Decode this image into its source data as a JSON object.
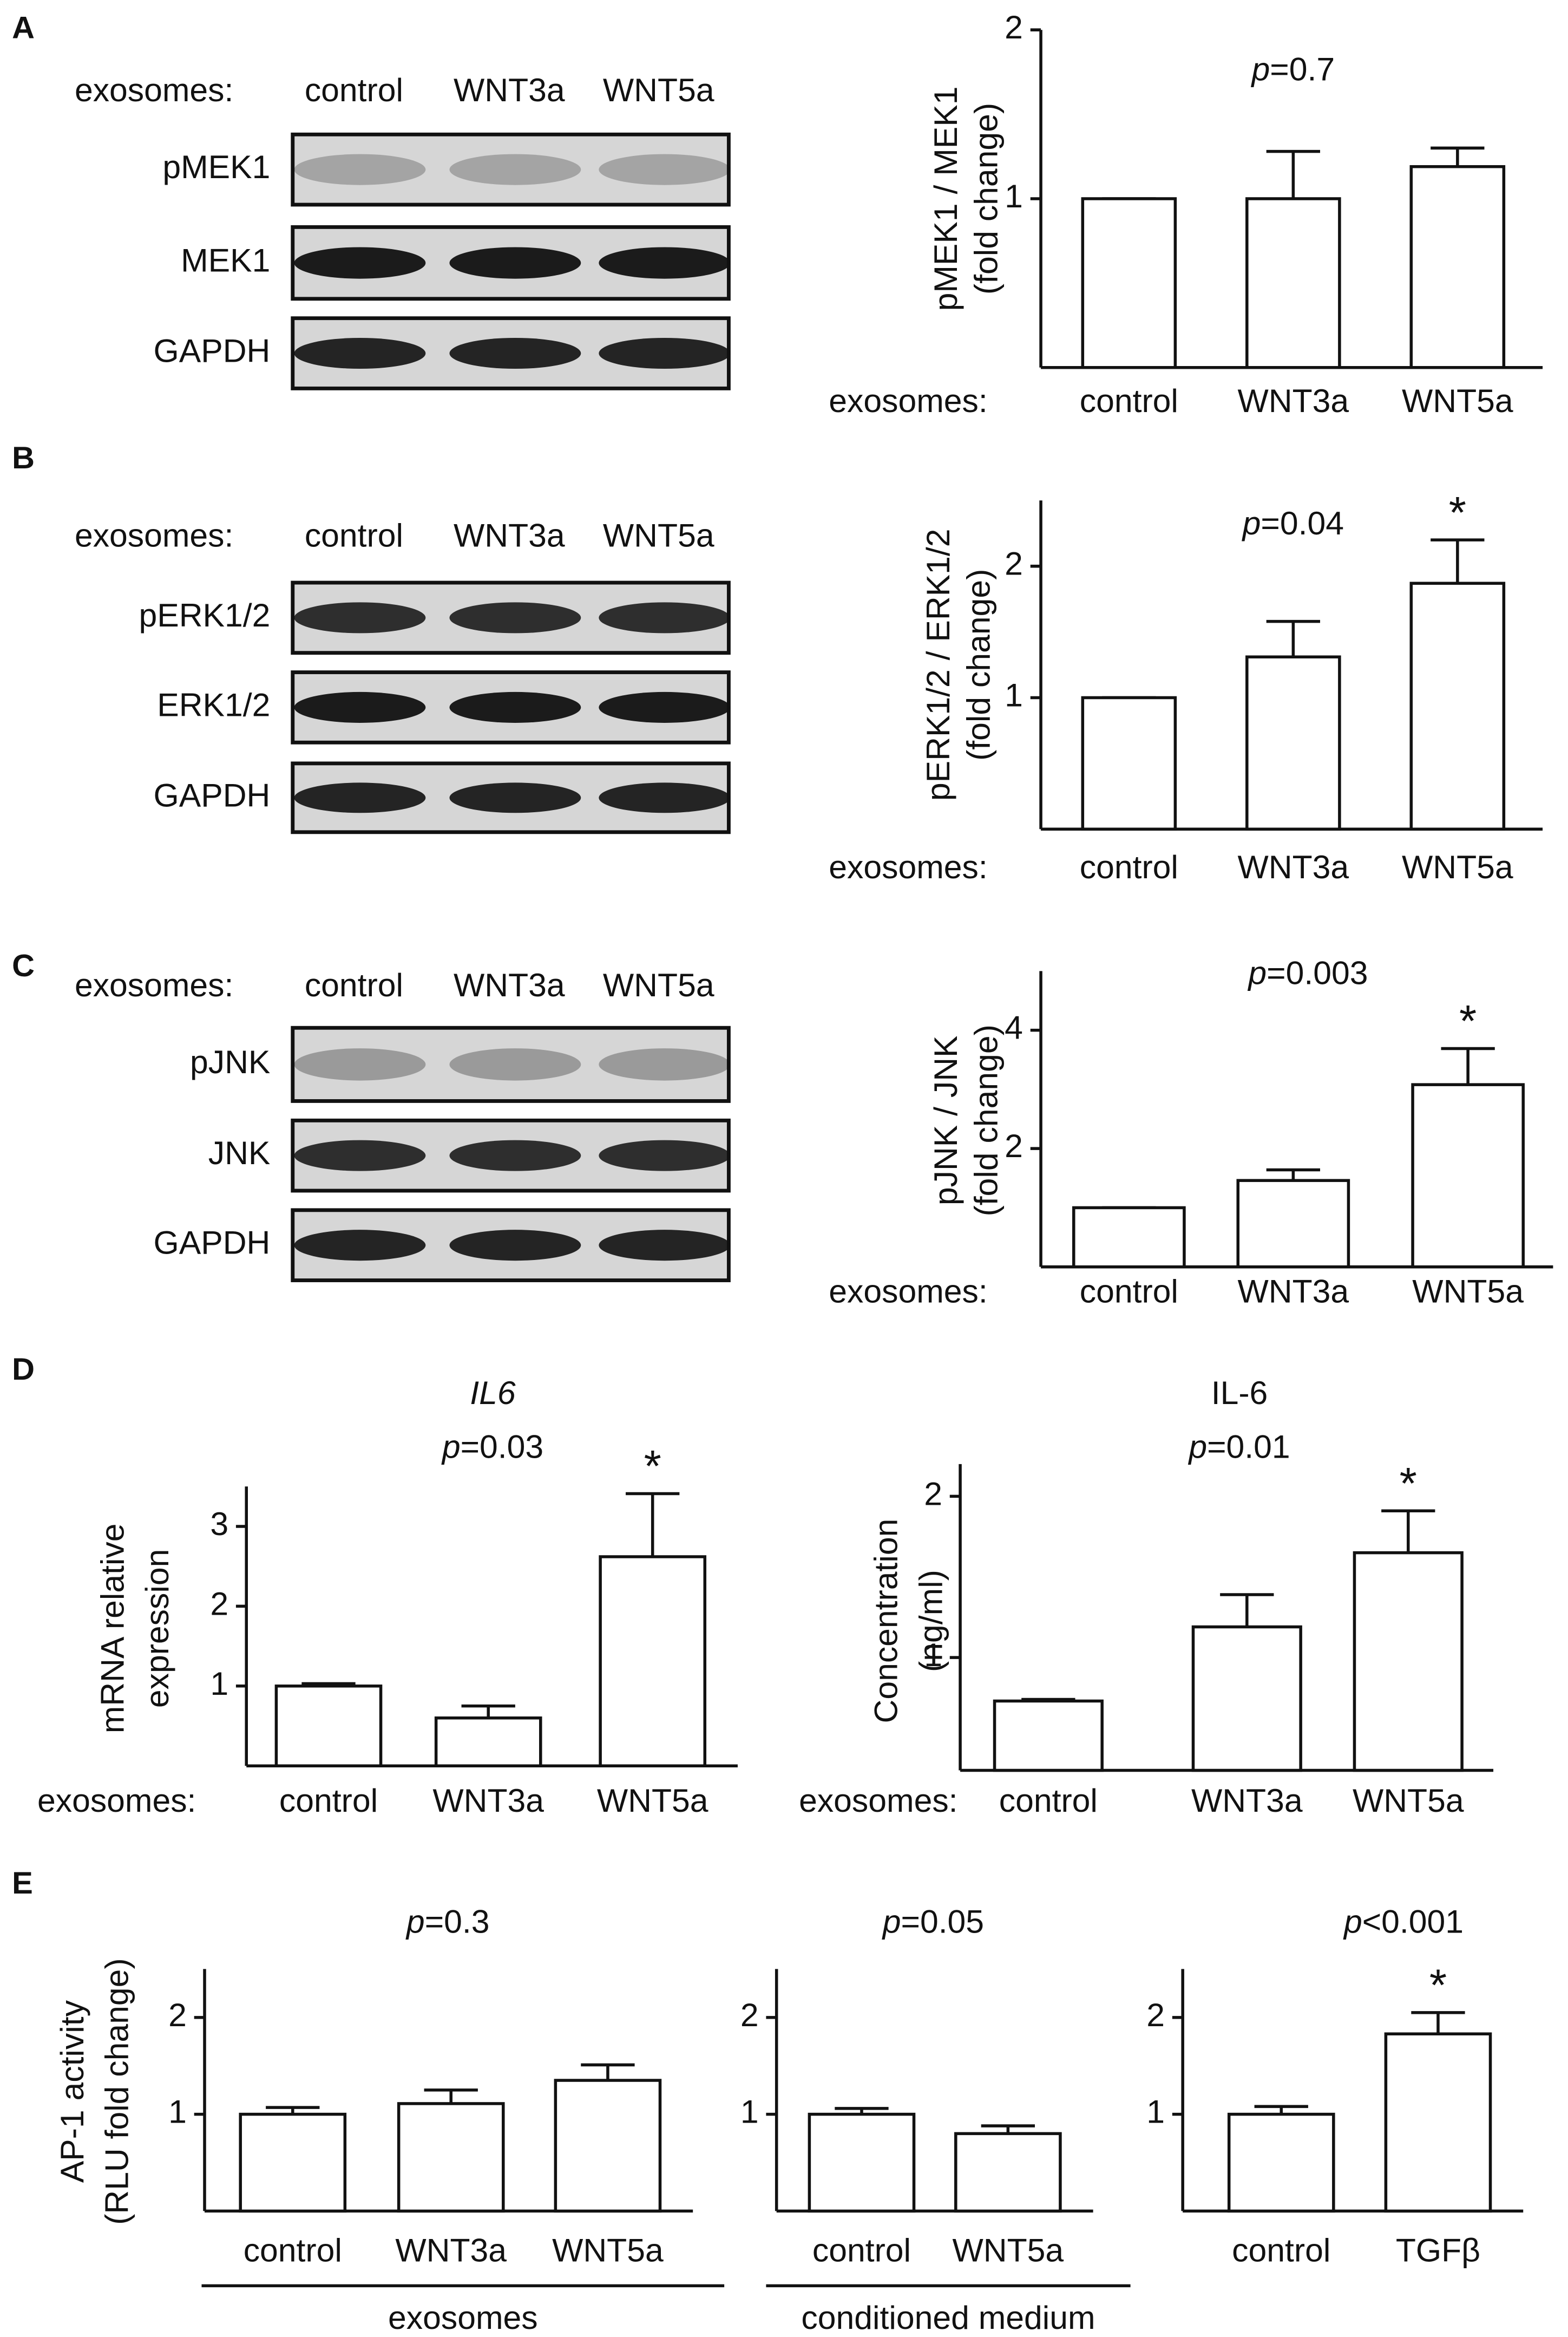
{
  "panel_labels": [
    "A",
    "B",
    "C",
    "D",
    "E"
  ],
  "blots": [
    {
      "header": "exosomes:",
      "lanes": [
        "control",
        "WNT3a",
        "WNT5a"
      ],
      "rows": [
        "pMEK1",
        "MEK1",
        "GAPDH"
      ]
    },
    {
      "header": "exosomes:",
      "lanes": [
        "control",
        "WNT3a",
        "WNT5a"
      ],
      "rows": [
        "pERK1/2",
        "ERK1/2",
        "GAPDH"
      ]
    },
    {
      "header": "exosomes:",
      "lanes": [
        "control",
        "WNT3a",
        "WNT5a"
      ],
      "rows": [
        "pJNK",
        "JNK",
        "GAPDH"
      ]
    }
  ],
  "chart_data": [
    {
      "type": "bar",
      "ylabel": [
        "pMEK1 / MEK1",
        "(fold change)"
      ],
      "xlabel": "exosomes:",
      "p_symbol": "p",
      "p_text": "=0.7",
      "categories": [
        "control",
        "WNT3a",
        "WNT5a"
      ],
      "values": [
        1,
        1.0,
        1.19
      ],
      "errors": [
        0,
        0.28,
        0.11
      ],
      "significance": [
        null,
        null,
        null
      ],
      "color": "#ffffff",
      "ylim": [
        0,
        2
      ],
      "yticks": [
        1,
        2
      ]
    },
    {
      "type": "bar",
      "ylabel": [
        "pERK1/2 / ERK1/2",
        "(fold change)"
      ],
      "xlabel": "exosomes:",
      "p_symbol": "p",
      "p_text": "=0.04",
      "categories": [
        "control",
        "WNT3a",
        "WNT5a"
      ],
      "values": [
        1,
        1.31,
        1.87
      ],
      "errors": [
        0,
        0.27,
        0.33
      ],
      "significance": [
        null,
        null,
        "*"
      ],
      "color": "#ffffff",
      "ylim": [
        0,
        2.5
      ],
      "yticks": [
        1,
        2
      ]
    },
    {
      "type": "bar",
      "ylabel": [
        "pJNK / JNK",
        "(fold change)"
      ],
      "xlabel": "exosomes:",
      "p_symbol": "p",
      "p_text": "=0.003",
      "categories": [
        "control",
        "WNT3a",
        "WNT5a"
      ],
      "values": [
        1,
        1.46,
        3.08
      ],
      "errors": [
        0,
        0.18,
        0.61
      ],
      "significance": [
        null,
        null,
        "*"
      ],
      "color": "#ffffff",
      "ylim": [
        0,
        5
      ],
      "yticks": [
        2,
        4
      ]
    },
    {
      "type": "bar",
      "title": "IL6",
      "ylabel": [
        "mRNA relative",
        "expression"
      ],
      "xlabel": "exosomes:",
      "p_symbol": "p",
      "p_text": "=0.03",
      "categories": [
        "control",
        "WNT3a",
        "WNT5a"
      ],
      "values": [
        1.0,
        0.6,
        2.62
      ],
      "errors": [
        0.03,
        0.15,
        0.79
      ],
      "significance": [
        null,
        null,
        "*"
      ],
      "color": "#ffffff",
      "ylim": [
        0,
        3.5
      ],
      "yticks": [
        1,
        2,
        3
      ]
    },
    {
      "type": "bar",
      "title": "IL-6",
      "ylabel": [
        "Concentration",
        "(ng/ml)"
      ],
      "xlabel": "exosomes:",
      "p_symbol": "p",
      "p_text": "=0.01",
      "categories": [
        "control",
        "WNT3a",
        "WNT5a"
      ],
      "values": [
        0.73,
        1.19,
        1.65
      ],
      "errors": [
        0.01,
        0.2,
        0.26
      ],
      "significance": [
        null,
        null,
        "*"
      ],
      "color": "#ffffff",
      "ylim": [
        0.3,
        2.2
      ],
      "yticks": [
        1,
        2
      ]
    },
    {
      "type": "bar",
      "ylabel": [
        "AP-1 activity",
        "(RLU fold change)"
      ],
      "group_label": "exosomes",
      "p_symbol": "p",
      "p_text": "=0.3",
      "categories": [
        "control",
        "WNT3a",
        "WNT5a"
      ],
      "values": [
        1,
        1.11,
        1.35
      ],
      "errors": [
        0.07,
        0.14,
        0.16
      ],
      "significance": [
        null,
        null,
        null
      ],
      "color": "#ffffff",
      "ylim": [
        0,
        2.5
      ],
      "yticks": [
        1,
        2
      ]
    },
    {
      "type": "bar",
      "group_label": "conditioned medium",
      "p_symbol": "p",
      "p_text": "=0.05",
      "categories": [
        "control",
        "WNT5a"
      ],
      "values": [
        1,
        0.8
      ],
      "errors": [
        0.06,
        0.08
      ],
      "significance": [
        null,
        null
      ],
      "color": "#ffffff",
      "ylim": [
        0,
        2.5
      ],
      "yticks": [
        1,
        2
      ]
    },
    {
      "type": "bar",
      "p_symbol": "p",
      "p_text": "<0.001",
      "categories": [
        "control",
        "TGFβ"
      ],
      "values": [
        1,
        1.83
      ],
      "errors": [
        0.08,
        0.22
      ],
      "significance": [
        null,
        "*"
      ],
      "color": "#ffffff",
      "ylim": [
        0,
        2.5
      ],
      "yticks": [
        1,
        2
      ]
    }
  ]
}
